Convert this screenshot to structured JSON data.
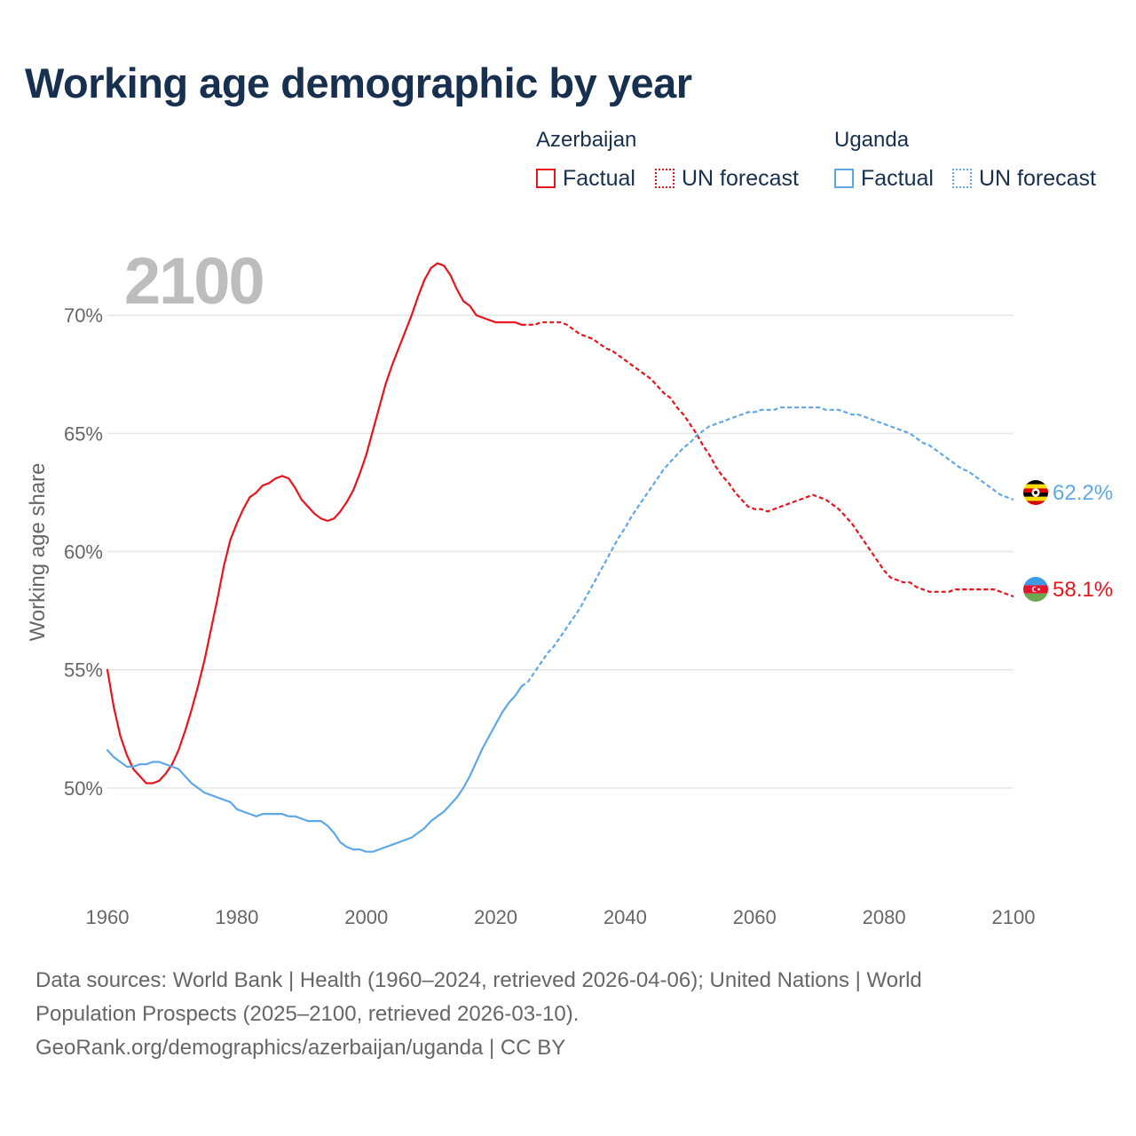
{
  "title": "Working age demographic by year",
  "legend": {
    "groups": [
      {
        "country": "Azerbaijan",
        "color": "#e8141b",
        "factual": "Factual",
        "forecast": "UN forecast"
      },
      {
        "country": "Uganda",
        "color": "#5fa8e8",
        "factual": "Factual",
        "forecast": "UN forecast"
      }
    ]
  },
  "sources": {
    "line1": "Data sources: World Bank | Health (1960–2024, retrieved 2026-04-06); United Nations | World",
    "line2": "Population Prospects (2025–2100, retrieved 2026-03-10).",
    "line3": "GeoRank.org/demographics/azerbaijan/uganda | CC BY"
  },
  "chart_data": {
    "type": "line",
    "title": "Working age demographic by year",
    "year_label": "2100",
    "ylabel": "Working age share",
    "xlabel": "",
    "xlim": [
      1960,
      2100
    ],
    "ylim": [
      45.3,
      72.6
    ],
    "grid": true,
    "x_ticks": [
      {
        "value": 1960,
        "label": "1960"
      },
      {
        "value": 1980,
        "label": "1980"
      },
      {
        "value": 2000,
        "label": "2000"
      },
      {
        "value": 2020,
        "label": "2020"
      },
      {
        "value": 2040,
        "label": "2040"
      },
      {
        "value": 2060,
        "label": "2060"
      },
      {
        "value": 2080,
        "label": "2080"
      },
      {
        "value": 2100,
        "label": "2100"
      }
    ],
    "y_ticks": [
      {
        "value": 50,
        "label": "50%"
      },
      {
        "value": 55,
        "label": "55%"
      },
      {
        "value": 60,
        "label": "60%"
      },
      {
        "value": 65,
        "label": "65%"
      },
      {
        "value": 70,
        "label": "70%"
      }
    ],
    "series": [
      {
        "name": "Azerbaijan",
        "color": "#e8141b",
        "end_label": "58.1%",
        "flag_icon": "azerbaijan-flag-icon",
        "factual_end_year": 2024,
        "points": [
          [
            1960,
            55.0
          ],
          [
            1961,
            53.4
          ],
          [
            1962,
            52.2
          ],
          [
            1963,
            51.4
          ],
          [
            1964,
            50.8
          ],
          [
            1965,
            50.5
          ],
          [
            1966,
            50.2
          ],
          [
            1967,
            50.2
          ],
          [
            1968,
            50.3
          ],
          [
            1969,
            50.6
          ],
          [
            1970,
            51.0
          ],
          [
            1971,
            51.6
          ],
          [
            1972,
            52.4
          ],
          [
            1973,
            53.3
          ],
          [
            1974,
            54.3
          ],
          [
            1975,
            55.4
          ],
          [
            1976,
            56.7
          ],
          [
            1977,
            58.0
          ],
          [
            1978,
            59.4
          ],
          [
            1979,
            60.5
          ],
          [
            1980,
            61.2
          ],
          [
            1981,
            61.8
          ],
          [
            1982,
            62.3
          ],
          [
            1983,
            62.5
          ],
          [
            1984,
            62.8
          ],
          [
            1985,
            62.9
          ],
          [
            1986,
            63.1
          ],
          [
            1987,
            63.2
          ],
          [
            1988,
            63.1
          ],
          [
            1989,
            62.7
          ],
          [
            1990,
            62.2
          ],
          [
            1991,
            61.9
          ],
          [
            1992,
            61.6
          ],
          [
            1993,
            61.4
          ],
          [
            1994,
            61.3
          ],
          [
            1995,
            61.4
          ],
          [
            1996,
            61.7
          ],
          [
            1997,
            62.1
          ],
          [
            1998,
            62.6
          ],
          [
            1999,
            63.3
          ],
          [
            2000,
            64.1
          ],
          [
            2001,
            65.1
          ],
          [
            2002,
            66.1
          ],
          [
            2003,
            67.1
          ],
          [
            2004,
            67.9
          ],
          [
            2005,
            68.6
          ],
          [
            2006,
            69.3
          ],
          [
            2007,
            70.0
          ],
          [
            2008,
            70.8
          ],
          [
            2009,
            71.5
          ],
          [
            2010,
            72.0
          ],
          [
            2011,
            72.2
          ],
          [
            2012,
            72.1
          ],
          [
            2013,
            71.7
          ],
          [
            2014,
            71.1
          ],
          [
            2015,
            70.6
          ],
          [
            2016,
            70.4
          ],
          [
            2017,
            70.0
          ],
          [
            2018,
            69.9
          ],
          [
            2019,
            69.8
          ],
          [
            2020,
            69.7
          ],
          [
            2021,
            69.7
          ],
          [
            2022,
            69.7
          ],
          [
            2023,
            69.7
          ],
          [
            2024,
            69.6
          ],
          [
            2025,
            69.6
          ],
          [
            2026,
            69.6
          ],
          [
            2027,
            69.7
          ],
          [
            2028,
            69.7
          ],
          [
            2029,
            69.7
          ],
          [
            2030,
            69.7
          ],
          [
            2031,
            69.6
          ],
          [
            2032,
            69.4
          ],
          [
            2033,
            69.2
          ],
          [
            2034,
            69.1
          ],
          [
            2035,
            69.0
          ],
          [
            2036,
            68.8
          ],
          [
            2037,
            68.6
          ],
          [
            2038,
            68.5
          ],
          [
            2039,
            68.3
          ],
          [
            2040,
            68.1
          ],
          [
            2041,
            67.9
          ],
          [
            2042,
            67.7
          ],
          [
            2043,
            67.5
          ],
          [
            2044,
            67.3
          ],
          [
            2045,
            67.0
          ],
          [
            2046,
            66.7
          ],
          [
            2047,
            66.5
          ],
          [
            2048,
            66.1
          ],
          [
            2049,
            65.8
          ],
          [
            2050,
            65.4
          ],
          [
            2051,
            65.0
          ],
          [
            2052,
            64.5
          ],
          [
            2053,
            64.1
          ],
          [
            2054,
            63.6
          ],
          [
            2055,
            63.2
          ],
          [
            2056,
            62.9
          ],
          [
            2057,
            62.5
          ],
          [
            2058,
            62.2
          ],
          [
            2059,
            61.9
          ],
          [
            2060,
            61.8
          ],
          [
            2061,
            61.8
          ],
          [
            2062,
            61.7
          ],
          [
            2063,
            61.8
          ],
          [
            2064,
            61.9
          ],
          [
            2065,
            62.0
          ],
          [
            2066,
            62.1
          ],
          [
            2067,
            62.2
          ],
          [
            2068,
            62.3
          ],
          [
            2069,
            62.4
          ],
          [
            2070,
            62.3
          ],
          [
            2071,
            62.2
          ],
          [
            2072,
            62.0
          ],
          [
            2073,
            61.8
          ],
          [
            2074,
            61.5
          ],
          [
            2075,
            61.2
          ],
          [
            2076,
            60.8
          ],
          [
            2077,
            60.4
          ],
          [
            2078,
            60.0
          ],
          [
            2079,
            59.6
          ],
          [
            2080,
            59.2
          ],
          [
            2081,
            58.9
          ],
          [
            2082,
            58.8
          ],
          [
            2083,
            58.7
          ],
          [
            2084,
            58.7
          ],
          [
            2085,
            58.5
          ],
          [
            2086,
            58.4
          ],
          [
            2087,
            58.3
          ],
          [
            2088,
            58.3
          ],
          [
            2089,
            58.3
          ],
          [
            2090,
            58.3
          ],
          [
            2091,
            58.4
          ],
          [
            2092,
            58.4
          ],
          [
            2093,
            58.4
          ],
          [
            2094,
            58.4
          ],
          [
            2095,
            58.4
          ],
          [
            2096,
            58.4
          ],
          [
            2097,
            58.4
          ],
          [
            2098,
            58.3
          ],
          [
            2099,
            58.2
          ],
          [
            2100,
            58.1
          ]
        ]
      },
      {
        "name": "Uganda",
        "color": "#5fa8e8",
        "end_label": "62.2%",
        "flag_icon": "uganda-flag-icon",
        "factual_end_year": 2024,
        "points": [
          [
            1960,
            51.6
          ],
          [
            1961,
            51.3
          ],
          [
            1962,
            51.1
          ],
          [
            1963,
            50.9
          ],
          [
            1964,
            50.9
          ],
          [
            1965,
            51.0
          ],
          [
            1966,
            51.0
          ],
          [
            1967,
            51.1
          ],
          [
            1968,
            51.1
          ],
          [
            1969,
            51.0
          ],
          [
            1970,
            50.9
          ],
          [
            1971,
            50.8
          ],
          [
            1972,
            50.5
          ],
          [
            1973,
            50.2
          ],
          [
            1974,
            50.0
          ],
          [
            1975,
            49.8
          ],
          [
            1976,
            49.7
          ],
          [
            1977,
            49.6
          ],
          [
            1978,
            49.5
          ],
          [
            1979,
            49.4
          ],
          [
            1980,
            49.1
          ],
          [
            1981,
            49.0
          ],
          [
            1982,
            48.9
          ],
          [
            1983,
            48.8
          ],
          [
            1984,
            48.9
          ],
          [
            1985,
            48.9
          ],
          [
            1986,
            48.9
          ],
          [
            1987,
            48.9
          ],
          [
            1988,
            48.8
          ],
          [
            1989,
            48.8
          ],
          [
            1990,
            48.7
          ],
          [
            1991,
            48.6
          ],
          [
            1992,
            48.6
          ],
          [
            1993,
            48.6
          ],
          [
            1994,
            48.4
          ],
          [
            1995,
            48.1
          ],
          [
            1996,
            47.7
          ],
          [
            1997,
            47.5
          ],
          [
            1998,
            47.4
          ],
          [
            1999,
            47.4
          ],
          [
            2000,
            47.3
          ],
          [
            2001,
            47.3
          ],
          [
            2002,
            47.4
          ],
          [
            2003,
            47.5
          ],
          [
            2004,
            47.6
          ],
          [
            2005,
            47.7
          ],
          [
            2006,
            47.8
          ],
          [
            2007,
            47.9
          ],
          [
            2008,
            48.1
          ],
          [
            2009,
            48.3
          ],
          [
            2010,
            48.6
          ],
          [
            2011,
            48.8
          ],
          [
            2012,
            49.0
          ],
          [
            2013,
            49.3
          ],
          [
            2014,
            49.6
          ],
          [
            2015,
            50.0
          ],
          [
            2016,
            50.5
          ],
          [
            2017,
            51.1
          ],
          [
            2018,
            51.7
          ],
          [
            2019,
            52.2
          ],
          [
            2020,
            52.7
          ],
          [
            2021,
            53.2
          ],
          [
            2022,
            53.6
          ],
          [
            2023,
            53.9
          ],
          [
            2024,
            54.3
          ],
          [
            2025,
            54.5
          ],
          [
            2026,
            54.9
          ],
          [
            2027,
            55.3
          ],
          [
            2028,
            55.7
          ],
          [
            2029,
            56.0
          ],
          [
            2030,
            56.4
          ],
          [
            2031,
            56.8
          ],
          [
            2032,
            57.2
          ],
          [
            2033,
            57.6
          ],
          [
            2034,
            58.1
          ],
          [
            2035,
            58.6
          ],
          [
            2036,
            59.1
          ],
          [
            2037,
            59.6
          ],
          [
            2038,
            60.1
          ],
          [
            2039,
            60.6
          ],
          [
            2040,
            61.0
          ],
          [
            2041,
            61.5
          ],
          [
            2042,
            61.9
          ],
          [
            2043,
            62.3
          ],
          [
            2044,
            62.7
          ],
          [
            2045,
            63.1
          ],
          [
            2046,
            63.5
          ],
          [
            2047,
            63.8
          ],
          [
            2048,
            64.1
          ],
          [
            2049,
            64.4
          ],
          [
            2050,
            64.6
          ],
          [
            2051,
            64.9
          ],
          [
            2052,
            65.1
          ],
          [
            2053,
            65.3
          ],
          [
            2054,
            65.4
          ],
          [
            2055,
            65.5
          ],
          [
            2056,
            65.6
          ],
          [
            2057,
            65.7
          ],
          [
            2058,
            65.8
          ],
          [
            2059,
            65.9
          ],
          [
            2060,
            65.9
          ],
          [
            2061,
            66.0
          ],
          [
            2062,
            66.0
          ],
          [
            2063,
            66.0
          ],
          [
            2064,
            66.1
          ],
          [
            2065,
            66.1
          ],
          [
            2066,
            66.1
          ],
          [
            2067,
            66.1
          ],
          [
            2068,
            66.1
          ],
          [
            2069,
            66.1
          ],
          [
            2070,
            66.1
          ],
          [
            2071,
            66.0
          ],
          [
            2072,
            66.0
          ],
          [
            2073,
            66.0
          ],
          [
            2074,
            65.9
          ],
          [
            2075,
            65.8
          ],
          [
            2076,
            65.8
          ],
          [
            2077,
            65.7
          ],
          [
            2078,
            65.6
          ],
          [
            2079,
            65.5
          ],
          [
            2080,
            65.4
          ],
          [
            2081,
            65.3
          ],
          [
            2082,
            65.2
          ],
          [
            2083,
            65.1
          ],
          [
            2084,
            65.0
          ],
          [
            2085,
            64.8
          ],
          [
            2086,
            64.6
          ],
          [
            2087,
            64.5
          ],
          [
            2088,
            64.3
          ],
          [
            2089,
            64.1
          ],
          [
            2090,
            63.9
          ],
          [
            2091,
            63.7
          ],
          [
            2092,
            63.5
          ],
          [
            2093,
            63.4
          ],
          [
            2094,
            63.2
          ],
          [
            2095,
            63.0
          ],
          [
            2096,
            62.8
          ],
          [
            2097,
            62.6
          ],
          [
            2098,
            62.4
          ],
          [
            2099,
            62.3
          ],
          [
            2100,
            62.2
          ]
        ]
      }
    ]
  }
}
